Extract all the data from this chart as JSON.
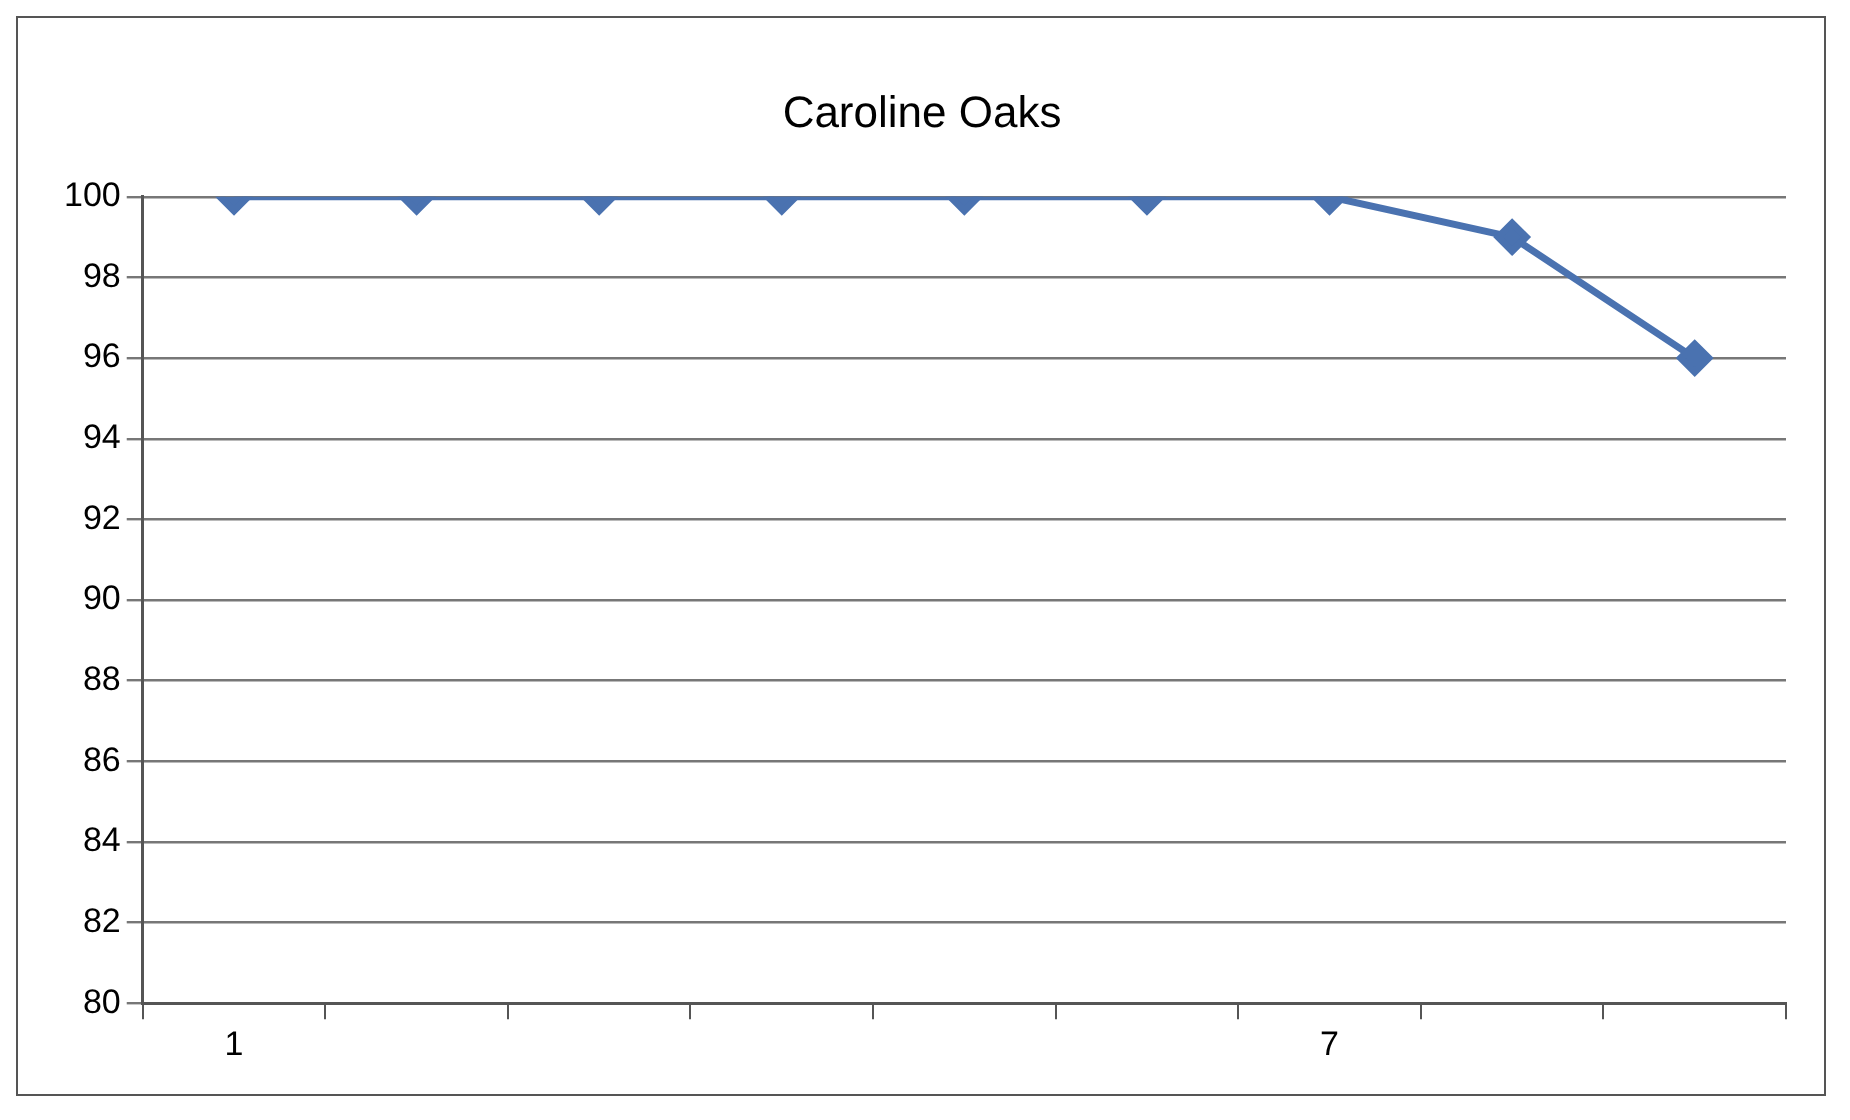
{
  "chart_data": {
    "type": "line",
    "title": "Caroline Oaks",
    "categories": [
      "1",
      null,
      null,
      null,
      null,
      null,
      "7",
      null,
      null
    ],
    "series": [
      {
        "color": "#4a72b0",
        "values": [
          100,
          100,
          100,
          100,
          100,
          100,
          100,
          99,
          96
        ]
      }
    ],
    "ylim": [
      80,
      100
    ],
    "yticks": [
      80,
      82,
      84,
      86,
      88,
      90,
      92,
      94,
      96,
      98,
      100
    ],
    "grid": "y",
    "legend": false,
    "marker": "diamond",
    "line_style": "solid"
  }
}
